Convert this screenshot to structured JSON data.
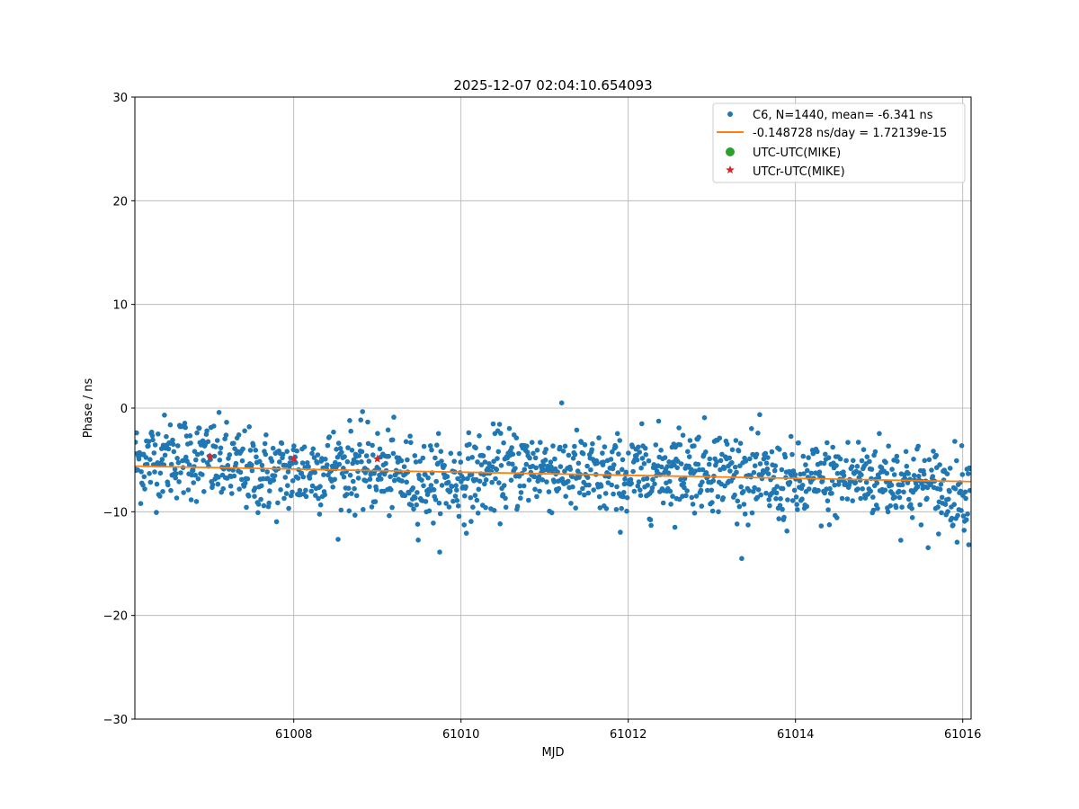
{
  "chart_data": {
    "type": "scatter",
    "title": "2025-12-07 02:04:10.654093",
    "xlabel": "MJD",
    "ylabel": "Phase / ns",
    "xlim": [
      61006.1,
      61016.1
    ],
    "ylim": [
      -30,
      30
    ],
    "xticks": [
      61008,
      61010,
      61012,
      61014,
      61016
    ],
    "yticks": [
      -30,
      -20,
      -10,
      0,
      10,
      20,
      30
    ],
    "grid": true,
    "legend_position": "top-right",
    "series": [
      {
        "name": "C6, N=1440, mean= -6.341 ns",
        "kind": "points",
        "color": "#1f77b4",
        "count": 1440,
        "x_start": 61006.1,
        "x_step_days": 0.006944,
        "mean": -6.341,
        "spread_ns": 2.0,
        "markers": [
          "blue-dot"
        ]
      },
      {
        "name": "-0.148728 ns/day = 1.72139e-15",
        "kind": "line",
        "color": "#ff7f0e",
        "x": [
          61006.1,
          61016.1
        ],
        "y": [
          -5.6,
          -7.09
        ]
      },
      {
        "name": "UTC-UTC(MIKE)",
        "kind": "points",
        "color": "#2ca02c",
        "marker": "circle",
        "x": [],
        "y": []
      },
      {
        "name": "UTCr-UTC(MIKE)",
        "kind": "points",
        "color": "#d62728",
        "marker": "star",
        "x": [
          61007.0,
          61008.0,
          61009.0
        ],
        "y": [
          -4.7,
          -4.9,
          -4.9
        ]
      }
    ]
  }
}
